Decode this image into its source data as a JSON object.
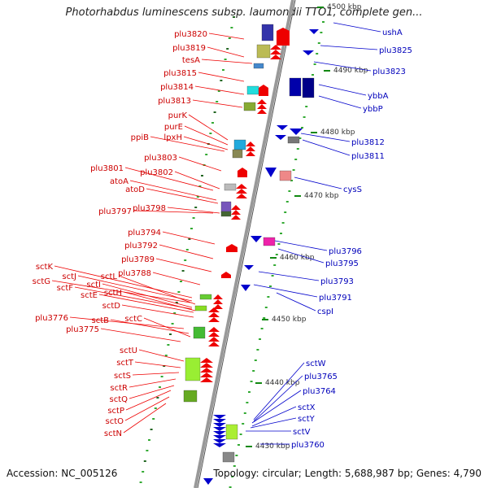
{
  "title": "Photorhabdus luminescens subsp. laumondii TTO1, complete gen...",
  "accession": "Accession: NC_005126",
  "topology": "Topology: circular; Length: 5,688,987 bp; Genes: 4,790",
  "kbp_labels": [
    "4500 kbp",
    "4490 kbp",
    "4480 kbp",
    "4470 kbp",
    "4460 kbp",
    "4450 kbp",
    "4440 kbp",
    "4430 kbp"
  ],
  "colors": {
    "forward": "#ee0000",
    "reverse": "#0000cc",
    "backbone": "#888888",
    "tick_outer": "#118811"
  },
  "left_labels": [
    "plu3820",
    "plu3819",
    "tesA",
    "plu3815",
    "plu3814",
    "plu3813",
    "purK",
    "purE",
    "ppiB",
    "lpxH",
    "plu3803",
    "plu3801",
    "plu3802",
    "atoA",
    "atoD",
    "plu3797",
    "plu3798",
    "plu3794",
    "plu3792",
    "plu3789",
    "plu3788",
    "sctK",
    "sctJ",
    "sctG",
    "sctL",
    "sctI",
    "sctF",
    "sctH",
    "sctE",
    "sctD",
    "plu3776",
    "sctB",
    "sctC",
    "plu3775",
    "sctU",
    "sctT",
    "sctS",
    "sctR",
    "sctQ",
    "sctP",
    "sctO",
    "sctN"
  ],
  "right_labels": [
    "ushA",
    "plu3825",
    "plu3823",
    "ybbA",
    "ybbP",
    "plu3812",
    "plu3811",
    "cysS",
    "plu3796",
    "plu3795",
    "plu3793",
    "plu3791",
    "cspI",
    "sctW",
    "plu3765",
    "plu3764",
    "sctX",
    "sctY",
    "sctV",
    "plu3760"
  ]
}
